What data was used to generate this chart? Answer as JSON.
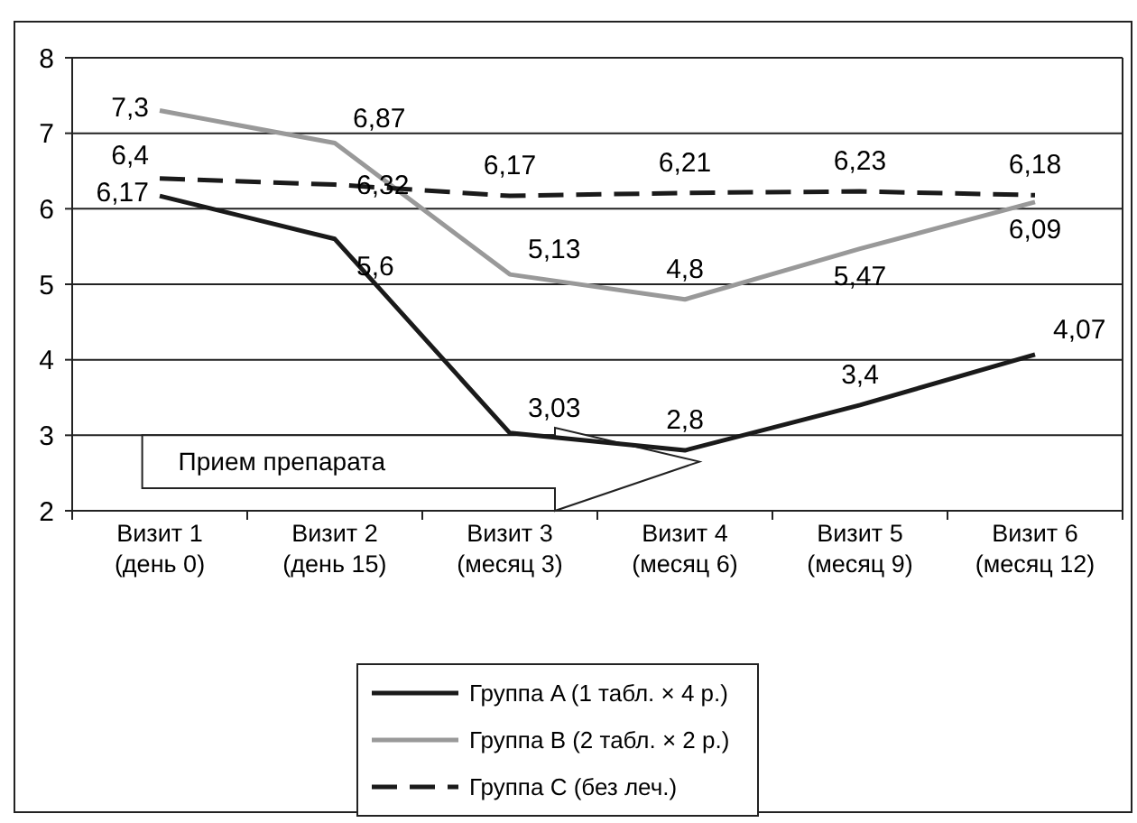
{
  "chart_data": {
    "type": "line",
    "categories": [
      "Визит 1\n(день 0)",
      "Визит 2\n(день 15)",
      "Визит 3\n(месяц 3)",
      "Визит 4\n(месяц 6)",
      "Визит 5\n(месяц 9)",
      "Визит 6\n(месяц 12)"
    ],
    "series": [
      {
        "name": "Группа A (1 табл. × 4 р.)",
        "color": "#1a1a1a",
        "line_style": "solid",
        "values": [
          6.17,
          5.6,
          3.03,
          2.8,
          3.4,
          4.07
        ],
        "value_labels": [
          "6,17",
          "5,6",
          "3,03",
          "2,8",
          "3,4",
          "4,07"
        ]
      },
      {
        "name": "Группа B (2 табл. × 2 р.)",
        "color": "#999999",
        "line_style": "solid",
        "values": [
          7.3,
          6.87,
          5.13,
          4.8,
          5.47,
          6.09
        ],
        "value_labels": [
          "7,3",
          "6,87",
          "5,13",
          "4,8",
          "5,47",
          "6,09"
        ]
      },
      {
        "name": "Группа C (без леч.)",
        "color": "#1a1a1a",
        "line_style": "dashed",
        "values": [
          6.4,
          6.32,
          6.17,
          6.21,
          6.23,
          6.18
        ],
        "value_labels": [
          "6,4",
          "6,32",
          "6,17",
          "6,21",
          "6,23",
          "6,18"
        ]
      }
    ],
    "ylim": [
      2,
      8
    ],
    "yticks": [
      2,
      3,
      4,
      5,
      6,
      7,
      8
    ],
    "grid": "y",
    "legend": "bottom",
    "marker": "none",
    "annotations": [
      "Прием препарата"
    ]
  }
}
